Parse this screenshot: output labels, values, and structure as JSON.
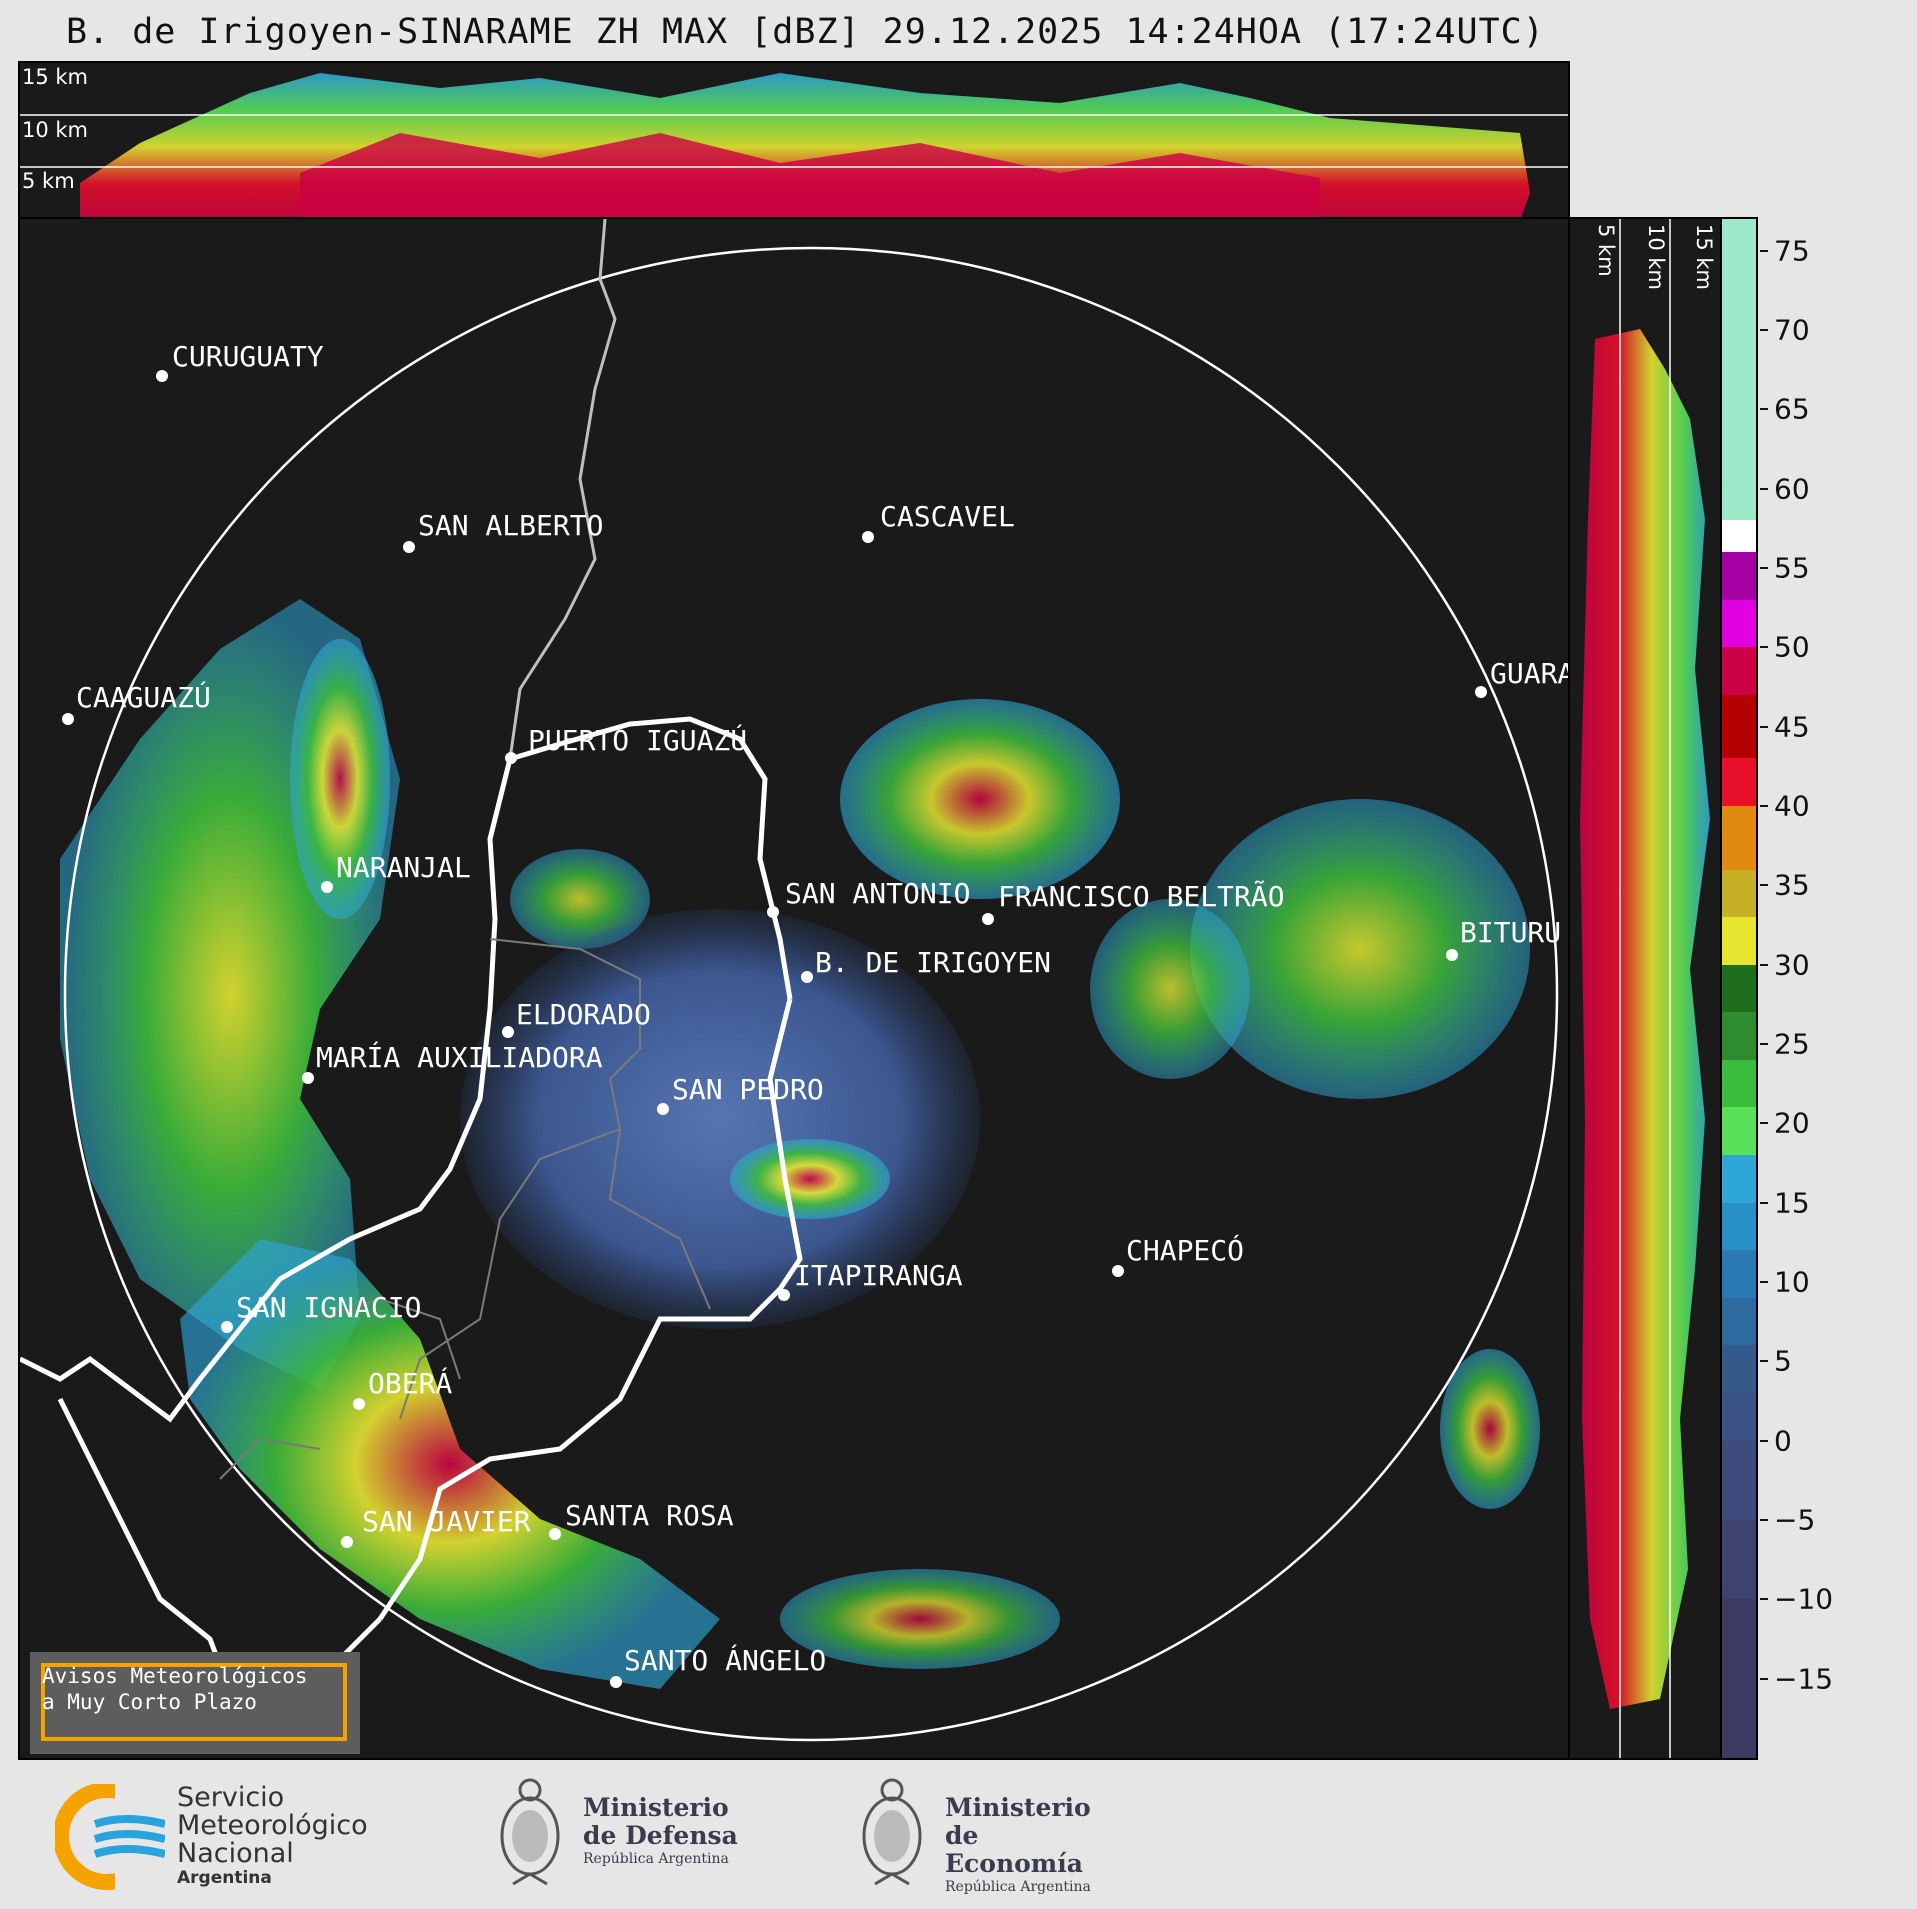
{
  "title": "B. de Irigoyen-SINARAME ZH MAX [dBZ] 29.12.2025 14:24HOA (17:24UTC)",
  "top_panel": {
    "altitude_labels": [
      "15 km",
      "10 km",
      "5 km"
    ]
  },
  "right_panel": {
    "altitude_labels": [
      "5 km",
      "10 km",
      "15 km"
    ]
  },
  "colorbar": {
    "unit": "dBZ",
    "ticks": [
      "75",
      "70",
      "65",
      "60",
      "55",
      "50",
      "45",
      "40",
      "35",
      "30",
      "25",
      "20",
      "15",
      "10",
      "5",
      "0",
      "−5",
      "−10",
      "−15"
    ],
    "range": [
      -20,
      77
    ],
    "segments": [
      {
        "from": 58,
        "to": 77,
        "color": "#9de8c8"
      },
      {
        "from": 56,
        "to": 58,
        "color": "#ffffff"
      },
      {
        "from": 53,
        "to": 56,
        "color": "#a400a4"
      },
      {
        "from": 50,
        "to": 53,
        "color": "#e000e0"
      },
      {
        "from": 47,
        "to": 50,
        "color": "#cc0044"
      },
      {
        "from": 43,
        "to": 47,
        "color": "#b40000"
      },
      {
        "from": 40,
        "to": 43,
        "color": "#e8102a"
      },
      {
        "from": 36,
        "to": 40,
        "color": "#e08a10"
      },
      {
        "from": 33,
        "to": 36,
        "color": "#c8b026"
      },
      {
        "from": 30,
        "to": 33,
        "color": "#e6e630"
      },
      {
        "from": 27,
        "to": 30,
        "color": "#1e6e1e"
      },
      {
        "from": 24,
        "to": 27,
        "color": "#2e8b2e"
      },
      {
        "from": 21,
        "to": 24,
        "color": "#3cbc3c"
      },
      {
        "from": 18,
        "to": 21,
        "color": "#58e058"
      },
      {
        "from": 15,
        "to": 18,
        "color": "#2ea6d8"
      },
      {
        "from": 12,
        "to": 15,
        "color": "#2890c8"
      },
      {
        "from": 9,
        "to": 12,
        "color": "#2a78b4"
      },
      {
        "from": 6,
        "to": 9,
        "color": "#2c6aa0"
      },
      {
        "from": 3,
        "to": 6,
        "color": "#345a8c"
      },
      {
        "from": 0,
        "to": 3,
        "color": "#3a5284"
      },
      {
        "from": -5,
        "to": 0,
        "color": "#3c4a7c"
      },
      {
        "from": -10,
        "to": -5,
        "color": "#3e426e"
      },
      {
        "from": -20,
        "to": -10,
        "color": "#3a3a62"
      }
    ]
  },
  "cities": [
    {
      "name": "CURUGUATY"
    },
    {
      "name": "SAN ALBERTO"
    },
    {
      "name": "CAAGUAZÚ"
    },
    {
      "name": "PUERTO IGUAZÚ"
    },
    {
      "name": "CASCAVEL"
    },
    {
      "name": "GUARA"
    },
    {
      "name": "NARANJAL"
    },
    {
      "name": "SAN ANTONIO"
    },
    {
      "name": "FRANCISCO BELTRÃO"
    },
    {
      "name": "BITURU"
    },
    {
      "name": "B. DE IRIGOYEN"
    },
    {
      "name": "ELDORADO"
    },
    {
      "name": "MARÍA AUXILIADORA"
    },
    {
      "name": "SAN PEDRO"
    },
    {
      "name": "CHAPECÓ"
    },
    {
      "name": "ITAPIRANGA"
    },
    {
      "name": "SAN IGNACIO"
    },
    {
      "name": "OBERÁ"
    },
    {
      "name": "SAN JAVIER"
    },
    {
      "name": "SANTA ROSA"
    },
    {
      "name": "SANTO ÁNGELO"
    }
  ],
  "warning_box": {
    "text": "Avisos Meteorológicos\na Muy Corto Plazo"
  },
  "colors": {
    "background": "#1a1a1a",
    "accent": "#f5a300"
  },
  "logos": {
    "smn": {
      "lines": [
        "Servicio",
        "Meteorológico",
        "Nacional"
      ],
      "sub": "Argentina"
    },
    "defensa": {
      "line1": "Ministerio",
      "line2": "de Defensa",
      "sub": "República Argentina"
    },
    "economia": {
      "line1": "Ministerio",
      "line2": "de Economía",
      "sub": "República Argentina"
    }
  }
}
